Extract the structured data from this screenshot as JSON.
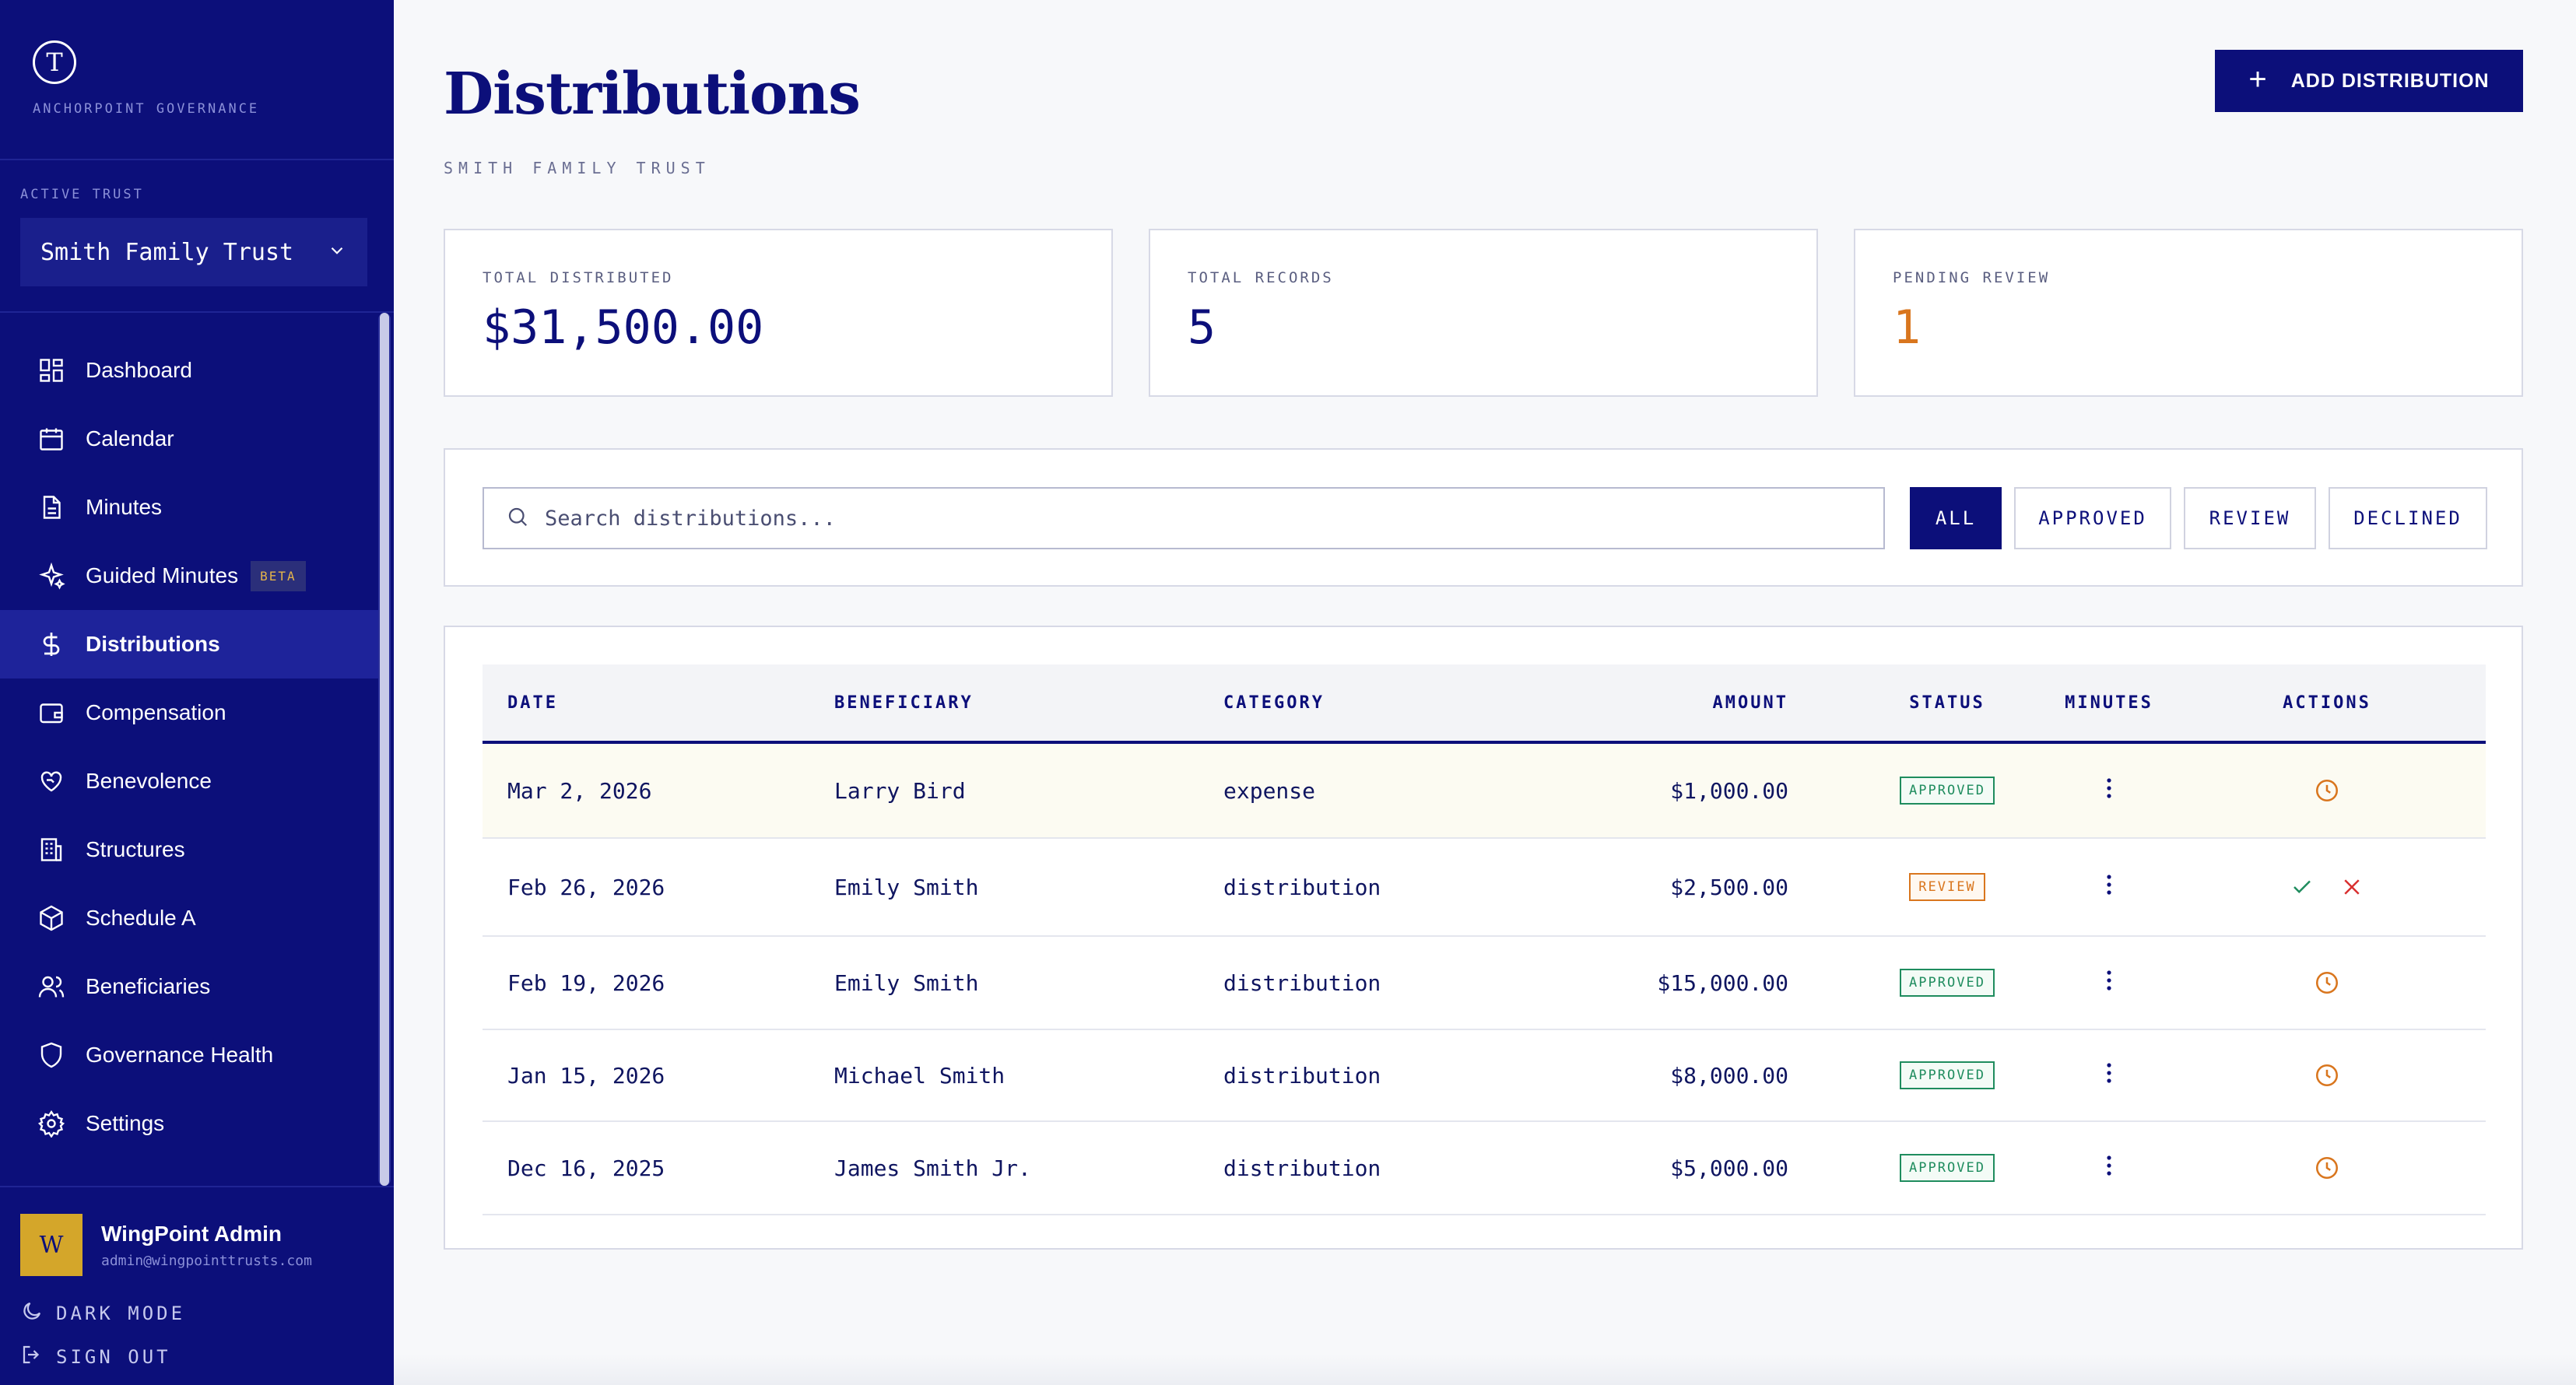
{
  "brand": {
    "logo_letter": "T",
    "name": "ANCHORPOINT GOVERNANCE"
  },
  "trust_selector": {
    "label": "ACTIVE TRUST",
    "value": "Smith Family Trust"
  },
  "nav": [
    {
      "label": "Dashboard",
      "icon": "dashboard-icon"
    },
    {
      "label": "Calendar",
      "icon": "calendar-icon"
    },
    {
      "label": "Minutes",
      "icon": "document-icon"
    },
    {
      "label": "Guided Minutes",
      "icon": "sparkle-icon",
      "badge": "BETA"
    },
    {
      "label": "Distributions",
      "icon": "dollar-icon",
      "active": true
    },
    {
      "label": "Compensation",
      "icon": "wallet-icon"
    },
    {
      "label": "Benevolence",
      "icon": "heart-hand-icon"
    },
    {
      "label": "Structures",
      "icon": "building-icon"
    },
    {
      "label": "Schedule A",
      "icon": "box-icon"
    },
    {
      "label": "Beneficiaries",
      "icon": "users-icon"
    },
    {
      "label": "Governance Health",
      "icon": "shield-icon"
    },
    {
      "label": "Settings",
      "icon": "gear-icon"
    }
  ],
  "user": {
    "initial": "W",
    "name": "WingPoint Admin",
    "email": "admin@wingpointtrusts.com"
  },
  "dark_mode_label": "DARK MODE",
  "sign_out_label": "SIGN OUT",
  "page": {
    "title": "Distributions",
    "subtitle": "SMITH FAMILY TRUST",
    "add_button": "ADD DISTRIBUTION"
  },
  "stats": [
    {
      "label": "TOTAL DISTRIBUTED",
      "value": "$31,500.00"
    },
    {
      "label": "TOTAL RECORDS",
      "value": "5"
    },
    {
      "label": "PENDING REVIEW",
      "value": "1"
    }
  ],
  "search": {
    "placeholder": "Search distributions..."
  },
  "filters": [
    {
      "label": "ALL",
      "active": true
    },
    {
      "label": "APPROVED"
    },
    {
      "label": "REVIEW"
    },
    {
      "label": "DECLINED"
    }
  ],
  "table": {
    "headers": {
      "date": "DATE",
      "beneficiary": "BENEFICIARY",
      "category": "CATEGORY",
      "amount": "AMOUNT",
      "status": "STATUS",
      "minutes": "MINUTES",
      "actions": "ACTIONS"
    },
    "rows": [
      {
        "date": "Mar 2, 2026",
        "beneficiary": "Larry Bird",
        "category": "expense",
        "amount": "$1,000.00",
        "status": "APPROVED"
      },
      {
        "date": "Feb 26, 2026",
        "beneficiary": "Emily Smith",
        "category": "distribution",
        "amount": "$2,500.00",
        "status": "REVIEW"
      },
      {
        "date": "Feb 19, 2026",
        "beneficiary": "Emily Smith",
        "category": "distribution",
        "amount": "$15,000.00",
        "status": "APPROVED"
      },
      {
        "date": "Jan 15, 2026",
        "beneficiary": "Michael Smith",
        "category": "distribution",
        "amount": "$8,000.00",
        "status": "APPROVED"
      },
      {
        "date": "Dec 16, 2025",
        "beneficiary": "James Smith Jr.",
        "category": "distribution",
        "amount": "$5,000.00",
        "status": "APPROVED"
      }
    ]
  },
  "colors": {
    "navy": "#0c0f7a",
    "approved": "#1f8c5e",
    "review": "#d9761e",
    "decline": "#d93030"
  }
}
